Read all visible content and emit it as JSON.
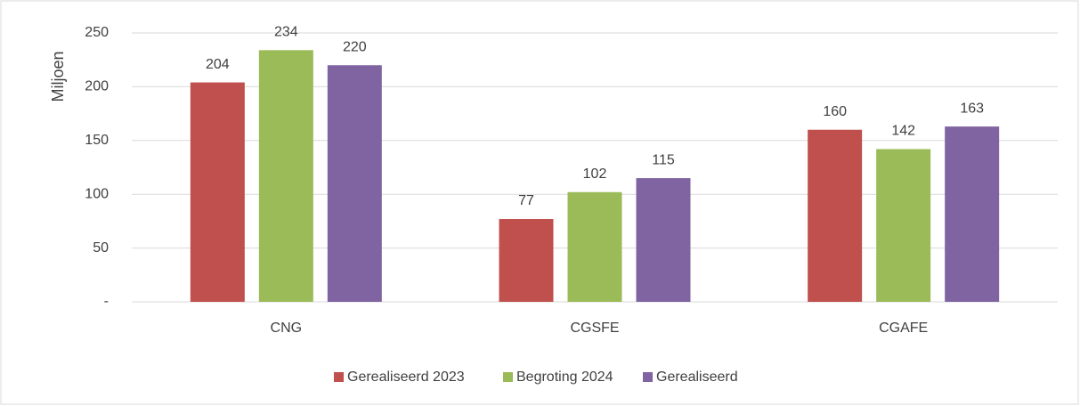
{
  "chart_data": {
    "type": "bar",
    "y_label": "Miljoen",
    "categories": [
      "CNG",
      "CGSFE",
      "CGAFE"
    ],
    "series": [
      {
        "name": "Gerealiseerd 2023",
        "color": "#c0504d",
        "values": [
          204,
          77,
          160
        ]
      },
      {
        "name": "Begroting 2024",
        "color": "#9bbb59",
        "values": [
          234,
          102,
          142
        ]
      },
      {
        "name": "Gerealiseerd",
        "color": "#8064a2",
        "values": [
          220,
          115,
          163
        ]
      }
    ],
    "ylim": [
      0,
      250
    ],
    "yticks": [
      {
        "value": 0,
        "label": "-"
      },
      50,
      100,
      150,
      200,
      250
    ],
    "grid": true,
    "legend": "bottom"
  }
}
